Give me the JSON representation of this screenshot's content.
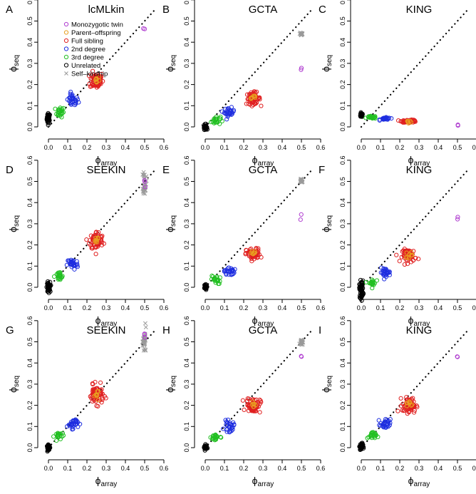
{
  "colors": {
    "mz": "#b03fd0",
    "po": "#e8a020",
    "fs": "#e02020",
    "d2": "#1e2ee0",
    "d3": "#22c022",
    "un": "#000000",
    "self": "#9a9a9a"
  },
  "legend": [
    {
      "key": "mz",
      "label": "Monozygotic twin",
      "marker": "circle"
    },
    {
      "key": "po",
      "label": "Parent–offspring",
      "marker": "circle"
    },
    {
      "key": "fs",
      "label": "Full sibling",
      "marker": "circle"
    },
    {
      "key": "d2",
      "label": "2nd degree",
      "marker": "circle"
    },
    {
      "key": "d3",
      "label": "3rd degree",
      "marker": "circle"
    },
    {
      "key": "un",
      "label": "Unrelated",
      "marker": "circle"
    },
    {
      "key": "self",
      "label": "Self–kinship",
      "marker": "cross"
    }
  ],
  "axis": {
    "x_ticks": [
      "0.0",
      "0.1",
      "0.2",
      "0.3",
      "0.4",
      "0.5",
      "0.6"
    ],
    "y_ticks": [
      "0.0",
      "0.1",
      "0.2",
      "0.3",
      "0.4",
      "0.5",
      "0.6"
    ],
    "x_label_main": "ϕ",
    "x_label_sub": "array",
    "y_label_main": "ϕ",
    "y_label_sub": "seq"
  },
  "chart_data": [
    {
      "letter": "A",
      "title": "lcMLkin",
      "type": "scatter",
      "xlim": [
        0,
        0.6
      ],
      "ylim": [
        0,
        0.6
      ],
      "diagonal": [
        0,
        0.55
      ],
      "clusters": [
        {
          "key": "un",
          "x": 0.0,
          "y": 0.04,
          "sx": 0.004,
          "sy": 0.012,
          "n": 45
        },
        {
          "key": "d3",
          "x": 0.06,
          "y": 0.07,
          "sx": 0.012,
          "sy": 0.012,
          "n": 22
        },
        {
          "key": "d2",
          "x": 0.125,
          "y": 0.125,
          "sx": 0.015,
          "sy": 0.016,
          "n": 30
        },
        {
          "key": "fs",
          "x": 0.25,
          "y": 0.22,
          "sx": 0.017,
          "sy": 0.02,
          "n": 70
        },
        {
          "key": "po",
          "x": 0.25,
          "y": 0.22,
          "sx": 0.008,
          "sy": 0.01,
          "n": 8
        },
        {
          "key": "mz",
          "x": 0.5,
          "y": 0.46,
          "sx": 0.002,
          "sy": 0.004,
          "n": 2
        }
      ]
    },
    {
      "letter": "B",
      "title": "GCTA",
      "type": "scatter",
      "xlim": [
        0,
        0.6
      ],
      "ylim": [
        0,
        0.6
      ],
      "diagonal": [
        0,
        0.55
      ],
      "clusters": [
        {
          "key": "un",
          "x": 0.0,
          "y": 0.0,
          "sx": 0.004,
          "sy": 0.006,
          "n": 40
        },
        {
          "key": "d3",
          "x": 0.055,
          "y": 0.03,
          "sx": 0.012,
          "sy": 0.01,
          "n": 22
        },
        {
          "key": "d2",
          "x": 0.125,
          "y": 0.07,
          "sx": 0.013,
          "sy": 0.01,
          "n": 28
        },
        {
          "key": "fs",
          "x": 0.25,
          "y": 0.135,
          "sx": 0.018,
          "sy": 0.014,
          "n": 65
        },
        {
          "key": "po",
          "x": 0.25,
          "y": 0.14,
          "sx": 0.008,
          "sy": 0.006,
          "n": 8
        },
        {
          "key": "self",
          "x": 0.5,
          "y": 0.44,
          "sx": 0.004,
          "sy": 0.006,
          "n": 22
        },
        {
          "key": "mz",
          "x": 0.5,
          "y": 0.28,
          "sx": 0.002,
          "sy": 0.01,
          "n": 2
        }
      ]
    },
    {
      "letter": "C",
      "title": "KING",
      "type": "scatter",
      "xlim": [
        0,
        0.6
      ],
      "ylim": [
        0,
        0.6
      ],
      "diagonal": [
        0,
        0.55
      ],
      "clusters": [
        {
          "key": "un",
          "x": 0.0,
          "y": 0.055,
          "sx": 0.004,
          "sy": 0.004,
          "n": 40
        },
        {
          "key": "d3",
          "x": 0.055,
          "y": 0.045,
          "sx": 0.012,
          "sy": 0.003,
          "n": 22
        },
        {
          "key": "d2",
          "x": 0.125,
          "y": 0.038,
          "sx": 0.013,
          "sy": 0.003,
          "n": 28
        },
        {
          "key": "fs",
          "x": 0.25,
          "y": 0.027,
          "sx": 0.02,
          "sy": 0.003,
          "n": 65
        },
        {
          "key": "po",
          "x": 0.25,
          "y": 0.025,
          "sx": 0.008,
          "sy": 0.002,
          "n": 6
        },
        {
          "key": "mz",
          "x": 0.5,
          "y": 0.01,
          "sx": 0.003,
          "sy": 0.002,
          "n": 2
        }
      ]
    },
    {
      "letter": "D",
      "title": "SEEKIN",
      "type": "scatter",
      "xlim": [
        0,
        0.6
      ],
      "ylim": [
        0,
        0.6
      ],
      "diagonal": [
        0,
        0.55
      ],
      "clusters": [
        {
          "key": "un",
          "x": 0.0,
          "y": 0.0,
          "sx": 0.004,
          "sy": 0.012,
          "n": 45
        },
        {
          "key": "d3",
          "x": 0.055,
          "y": 0.05,
          "sx": 0.012,
          "sy": 0.012,
          "n": 22
        },
        {
          "key": "d2",
          "x": 0.125,
          "y": 0.11,
          "sx": 0.014,
          "sy": 0.014,
          "n": 30
        },
        {
          "key": "fs",
          "x": 0.25,
          "y": 0.22,
          "sx": 0.018,
          "sy": 0.022,
          "n": 70
        },
        {
          "key": "po",
          "x": 0.25,
          "y": 0.225,
          "sx": 0.008,
          "sy": 0.01,
          "n": 8
        },
        {
          "key": "self",
          "x": 0.5,
          "y": 0.5,
          "sx": 0.004,
          "sy": 0.03,
          "n": 28
        },
        {
          "key": "mz",
          "x": 0.5,
          "y": 0.48,
          "sx": 0.002,
          "sy": 0.02,
          "n": 3
        }
      ]
    },
    {
      "letter": "E",
      "title": "GCTA",
      "type": "scatter",
      "xlim": [
        0,
        0.6
      ],
      "ylim": [
        0,
        0.6
      ],
      "diagonal": [
        0,
        0.55
      ],
      "clusters": [
        {
          "key": "un",
          "x": 0.0,
          "y": 0.0,
          "sx": 0.004,
          "sy": 0.006,
          "n": 40
        },
        {
          "key": "d3",
          "x": 0.055,
          "y": 0.035,
          "sx": 0.012,
          "sy": 0.01,
          "n": 22
        },
        {
          "key": "d2",
          "x": 0.125,
          "y": 0.075,
          "sx": 0.013,
          "sy": 0.01,
          "n": 28
        },
        {
          "key": "fs",
          "x": 0.25,
          "y": 0.155,
          "sx": 0.018,
          "sy": 0.014,
          "n": 65
        },
        {
          "key": "po",
          "x": 0.25,
          "y": 0.16,
          "sx": 0.008,
          "sy": 0.006,
          "n": 8
        },
        {
          "key": "self",
          "x": 0.5,
          "y": 0.505,
          "sx": 0.004,
          "sy": 0.006,
          "n": 22
        },
        {
          "key": "mz",
          "x": 0.5,
          "y": 0.335,
          "sx": 0.002,
          "sy": 0.012,
          "n": 2
        }
      ]
    },
    {
      "letter": "F",
      "title": "KING",
      "type": "scatter",
      "xlim": [
        0,
        0.6
      ],
      "ylim": [
        0,
        0.6
      ],
      "diagonal": [
        0,
        0.55
      ],
      "clusters": [
        {
          "key": "un",
          "x": 0.0,
          "y": -0.01,
          "sx": 0.005,
          "sy": 0.02,
          "n": 55
        },
        {
          "key": "d3",
          "x": 0.055,
          "y": 0.02,
          "sx": 0.01,
          "sy": 0.01,
          "n": 22
        },
        {
          "key": "d2",
          "x": 0.125,
          "y": 0.07,
          "sx": 0.013,
          "sy": 0.01,
          "n": 28
        },
        {
          "key": "fs",
          "x": 0.25,
          "y": 0.15,
          "sx": 0.018,
          "sy": 0.015,
          "n": 65
        },
        {
          "key": "po",
          "x": 0.25,
          "y": 0.155,
          "sx": 0.008,
          "sy": 0.008,
          "n": 8
        },
        {
          "key": "mz",
          "x": 0.5,
          "y": 0.325,
          "sx": 0.002,
          "sy": 0.008,
          "n": 2
        }
      ]
    },
    {
      "letter": "G",
      "title": "SEEKIN",
      "type": "scatter",
      "xlim": [
        0,
        0.6
      ],
      "ylim": [
        0,
        0.6
      ],
      "diagonal": [
        0,
        0.55
      ],
      "clusters": [
        {
          "key": "un",
          "x": 0.0,
          "y": 0.0,
          "sx": 0.004,
          "sy": 0.006,
          "n": 40
        },
        {
          "key": "d3",
          "x": 0.055,
          "y": 0.055,
          "sx": 0.012,
          "sy": 0.01,
          "n": 22
        },
        {
          "key": "d2",
          "x": 0.125,
          "y": 0.115,
          "sx": 0.014,
          "sy": 0.012,
          "n": 30
        },
        {
          "key": "fs",
          "x": 0.25,
          "y": 0.25,
          "sx": 0.018,
          "sy": 0.022,
          "n": 70
        },
        {
          "key": "po",
          "x": 0.25,
          "y": 0.25,
          "sx": 0.008,
          "sy": 0.01,
          "n": 8
        },
        {
          "key": "self",
          "x": 0.5,
          "y": 0.5,
          "sx": 0.004,
          "sy": 0.03,
          "n": 28
        },
        {
          "key": "mz",
          "x": 0.5,
          "y": 0.52,
          "sx": 0.002,
          "sy": 0.02,
          "n": 3
        }
      ]
    },
    {
      "letter": "H",
      "title": "GCTA",
      "type": "scatter",
      "xlim": [
        0,
        0.6
      ],
      "ylim": [
        0,
        0.6
      ],
      "diagonal": [
        0,
        0.55
      ],
      "clusters": [
        {
          "key": "un",
          "x": 0.0,
          "y": 0.0,
          "sx": 0.004,
          "sy": 0.006,
          "n": 40
        },
        {
          "key": "d3",
          "x": 0.055,
          "y": 0.05,
          "sx": 0.012,
          "sy": 0.01,
          "n": 22
        },
        {
          "key": "d2",
          "x": 0.125,
          "y": 0.1,
          "sx": 0.013,
          "sy": 0.012,
          "n": 28
        },
        {
          "key": "fs",
          "x": 0.25,
          "y": 0.2,
          "sx": 0.018,
          "sy": 0.018,
          "n": 65
        },
        {
          "key": "po",
          "x": 0.25,
          "y": 0.205,
          "sx": 0.008,
          "sy": 0.008,
          "n": 8
        },
        {
          "key": "self",
          "x": 0.5,
          "y": 0.5,
          "sx": 0.004,
          "sy": 0.006,
          "n": 22
        },
        {
          "key": "mz",
          "x": 0.5,
          "y": 0.43,
          "sx": 0.003,
          "sy": 0.002,
          "n": 2
        }
      ]
    },
    {
      "letter": "I",
      "title": "KING",
      "type": "scatter",
      "xlim": [
        0,
        0.6
      ],
      "ylim": [
        0,
        0.6
      ],
      "diagonal": [
        0,
        0.55
      ],
      "clusters": [
        {
          "key": "un",
          "x": 0.0,
          "y": 0.005,
          "sx": 0.004,
          "sy": 0.008,
          "n": 40
        },
        {
          "key": "d3",
          "x": 0.055,
          "y": 0.055,
          "sx": 0.012,
          "sy": 0.01,
          "n": 22
        },
        {
          "key": "d2",
          "x": 0.125,
          "y": 0.11,
          "sx": 0.013,
          "sy": 0.012,
          "n": 28
        },
        {
          "key": "fs",
          "x": 0.25,
          "y": 0.2,
          "sx": 0.018,
          "sy": 0.018,
          "n": 65
        },
        {
          "key": "po",
          "x": 0.25,
          "y": 0.205,
          "sx": 0.008,
          "sy": 0.008,
          "n": 8
        },
        {
          "key": "mz",
          "x": 0.5,
          "y": 0.43,
          "sx": 0.003,
          "sy": 0.002,
          "n": 2
        }
      ]
    }
  ]
}
